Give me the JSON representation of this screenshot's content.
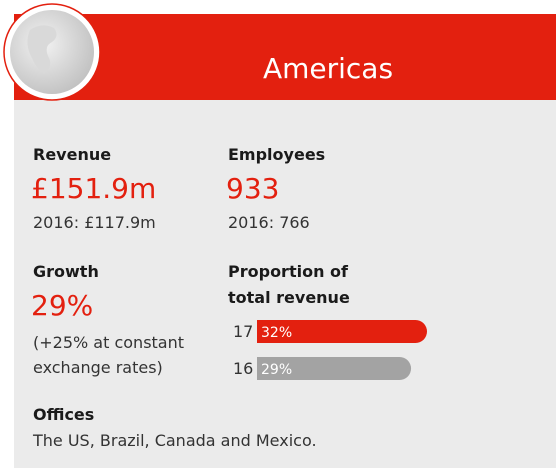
{
  "header": {
    "title": "Americas"
  },
  "stats": [
    {
      "label": "Revenue",
      "value": "£151.9m",
      "note": [
        "2016: £117.9m"
      ]
    },
    {
      "label": "Employees",
      "value": "933",
      "note": [
        "2016: 766"
      ]
    },
    {
      "label": "Growth",
      "value": "29%",
      "note": [
        "(+25% at constant",
        "exchange rates)"
      ]
    }
  ],
  "proportion": {
    "label": [
      "Proportion of",
      "total revenue"
    ],
    "bars": [
      {
        "year": "17",
        "value": 32,
        "label": "32%",
        "color": "#e3200f"
      },
      {
        "year": "16",
        "value": 29,
        "label": "29%",
        "color": "#a3a3a3"
      }
    ]
  },
  "offices": {
    "label": "Offices",
    "text": "The US, Brazil, Canada and Mexico."
  }
}
